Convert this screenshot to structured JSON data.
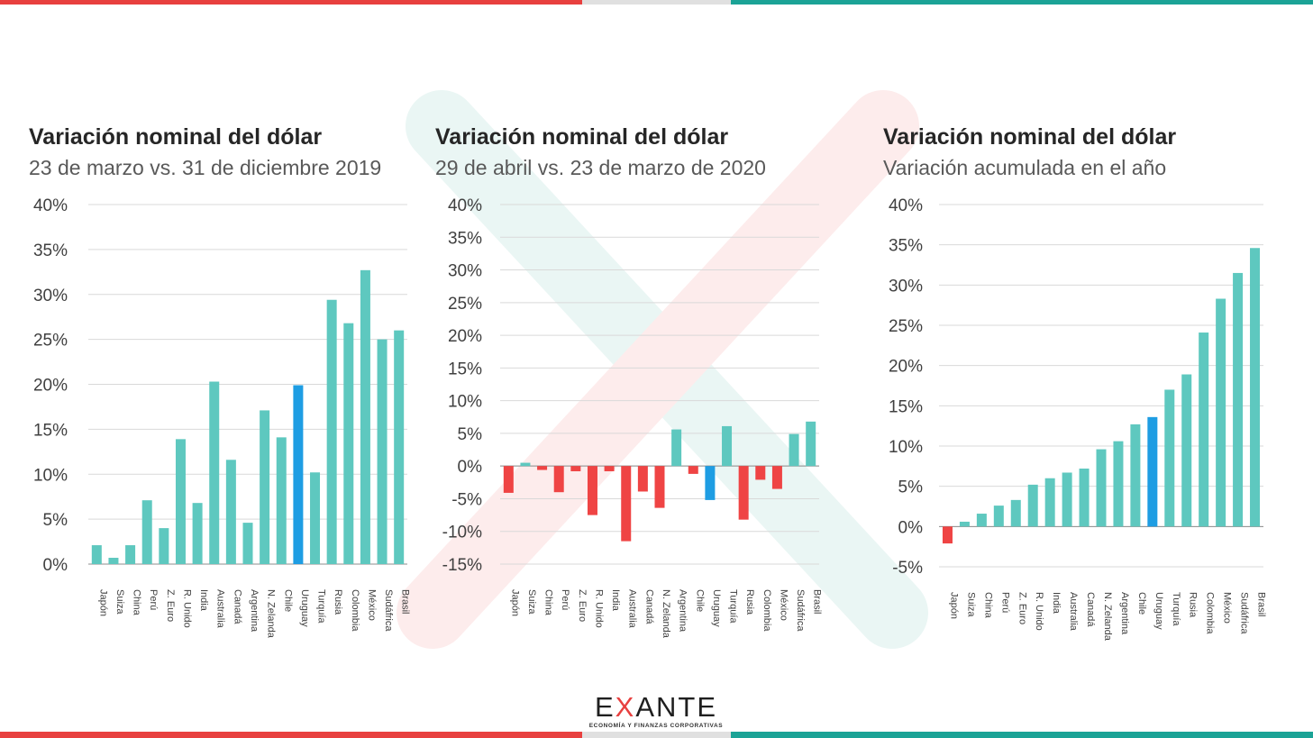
{
  "colors": {
    "bar_default": "#5ec8bf",
    "bar_highlight": "#1e9de3",
    "bar_negative": "#ef4444",
    "grid": "#d9d9d9",
    "axis_text": "#404040",
    "stripe_red": "#e8403f",
    "stripe_gray": "#e0e0e0",
    "stripe_teal": "#1ba396"
  },
  "logo": {
    "text_pre": "E",
    "text_x": "X",
    "text_post": "ANTE",
    "tagline": "ECONOMÍA Y FINANZAS CORPORATIVAS"
  },
  "chart_data": [
    {
      "type": "bar",
      "title": "Variación nominal del dólar",
      "subtitle": "23 de marzo vs. 31 de diciembre 2019",
      "categories": [
        "Japón",
        "Suiza",
        "China",
        "Perú",
        "Z. Euro",
        "R. Unido",
        "India",
        "Australia",
        "Canadá",
        "Argentina",
        "N. Zelanda",
        "Chile",
        "Uruguay",
        "Turquía",
        "Rusia",
        "Colombia",
        "México",
        "Sudáfrica",
        "Brasil"
      ],
      "values": [
        2.1,
        0.7,
        2.1,
        7.1,
        4.0,
        13.9,
        6.8,
        20.3,
        11.6,
        4.6,
        17.1,
        14.1,
        19.9,
        10.2,
        29.4,
        26.8,
        32.7,
        25.0,
        26.0
      ],
      "highlight": "Uruguay",
      "ylim": [
        0,
        40
      ],
      "yticks": [
        "0%",
        "5%",
        "10%",
        "15%",
        "20%",
        "25%",
        "30%",
        "35%",
        "40%"
      ],
      "grid": true
    },
    {
      "type": "bar",
      "title": "Variación nominal del dólar",
      "subtitle": "29 de abril vs. 23 de marzo de 2020",
      "categories": [
        "Japón",
        "Suiza",
        "China",
        "Perú",
        "Z. Euro",
        "R. Unido",
        "India",
        "Australia",
        "Canadá",
        "N. Zelanda",
        "Argentina",
        "Chile",
        "Uruguay",
        "Turquía",
        "Rusia",
        "Colombia",
        "México",
        "Sudáfrica",
        "Brasil"
      ],
      "values": [
        -4.1,
        0.5,
        -0.6,
        -4.0,
        -0.8,
        -7.5,
        -0.8,
        -11.5,
        -3.9,
        -6.4,
        5.6,
        -1.2,
        -5.2,
        6.1,
        -8.2,
        -2.1,
        -3.5,
        4.9,
        6.8
      ],
      "highlight": "Uruguay",
      "ylim": [
        -15,
        40
      ],
      "yticks": [
        "-15%",
        "-10%",
        "-5%",
        "0%",
        "5%",
        "10%",
        "15%",
        "20%",
        "25%",
        "30%",
        "35%",
        "40%"
      ],
      "grid": true
    },
    {
      "type": "bar",
      "title": "Variación nominal del dólar",
      "subtitle": "Variación acumulada en el año",
      "categories": [
        "Japón",
        "Suiza",
        "China",
        "Perú",
        "Z. Euro",
        "R. Unido",
        "India",
        "Australia",
        "Canadá",
        "N. Zelanda",
        "Argentina",
        "Chile",
        "Uruguay",
        "Turquía",
        "Rusia",
        "Colombia",
        "México",
        "Sudáfrica",
        "Brasil"
      ],
      "values": [
        -2.1,
        0.6,
        1.6,
        2.6,
        3.3,
        5.2,
        6.0,
        6.7,
        7.2,
        9.6,
        10.6,
        12.7,
        13.6,
        17.0,
        18.9,
        24.1,
        28.3,
        31.5,
        34.6
      ],
      "highlight": "Uruguay",
      "ylim": [
        -5,
        40
      ],
      "yticks": [
        "-5%",
        "0%",
        "5%",
        "10%",
        "15%",
        "20%",
        "25%",
        "30%",
        "35%",
        "40%"
      ],
      "grid": true
    }
  ]
}
